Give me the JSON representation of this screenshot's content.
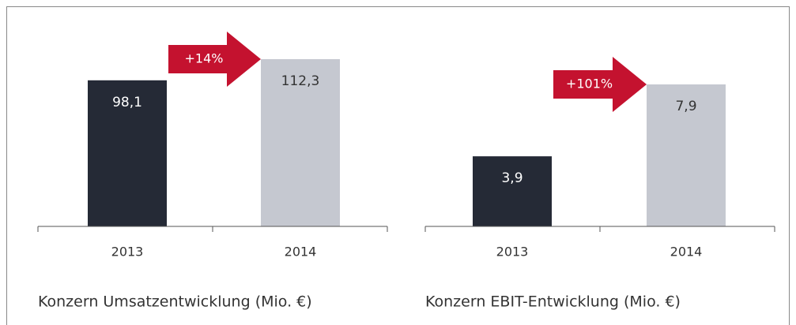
{
  "chart_data": [
    {
      "type": "bar",
      "title": "Konzern Umsatzentwicklung (Mio. €)",
      "categories": [
        "2013",
        "2014"
      ],
      "values": [
        98.1,
        112.3
      ],
      "value_labels": [
        "98,1",
        "112,3"
      ],
      "colors": [
        "#252a36",
        "#c5c8d0"
      ],
      "annotation": "+14%"
    },
    {
      "type": "bar",
      "title": "Konzern EBIT-Entwicklung (Mio. €)",
      "categories": [
        "2013",
        "2014"
      ],
      "values": [
        3.9,
        7.9
      ],
      "value_labels": [
        "3,9",
        "7,9"
      ],
      "colors": [
        "#252a36",
        "#c5c8d0"
      ],
      "annotation": "+101%"
    }
  ]
}
